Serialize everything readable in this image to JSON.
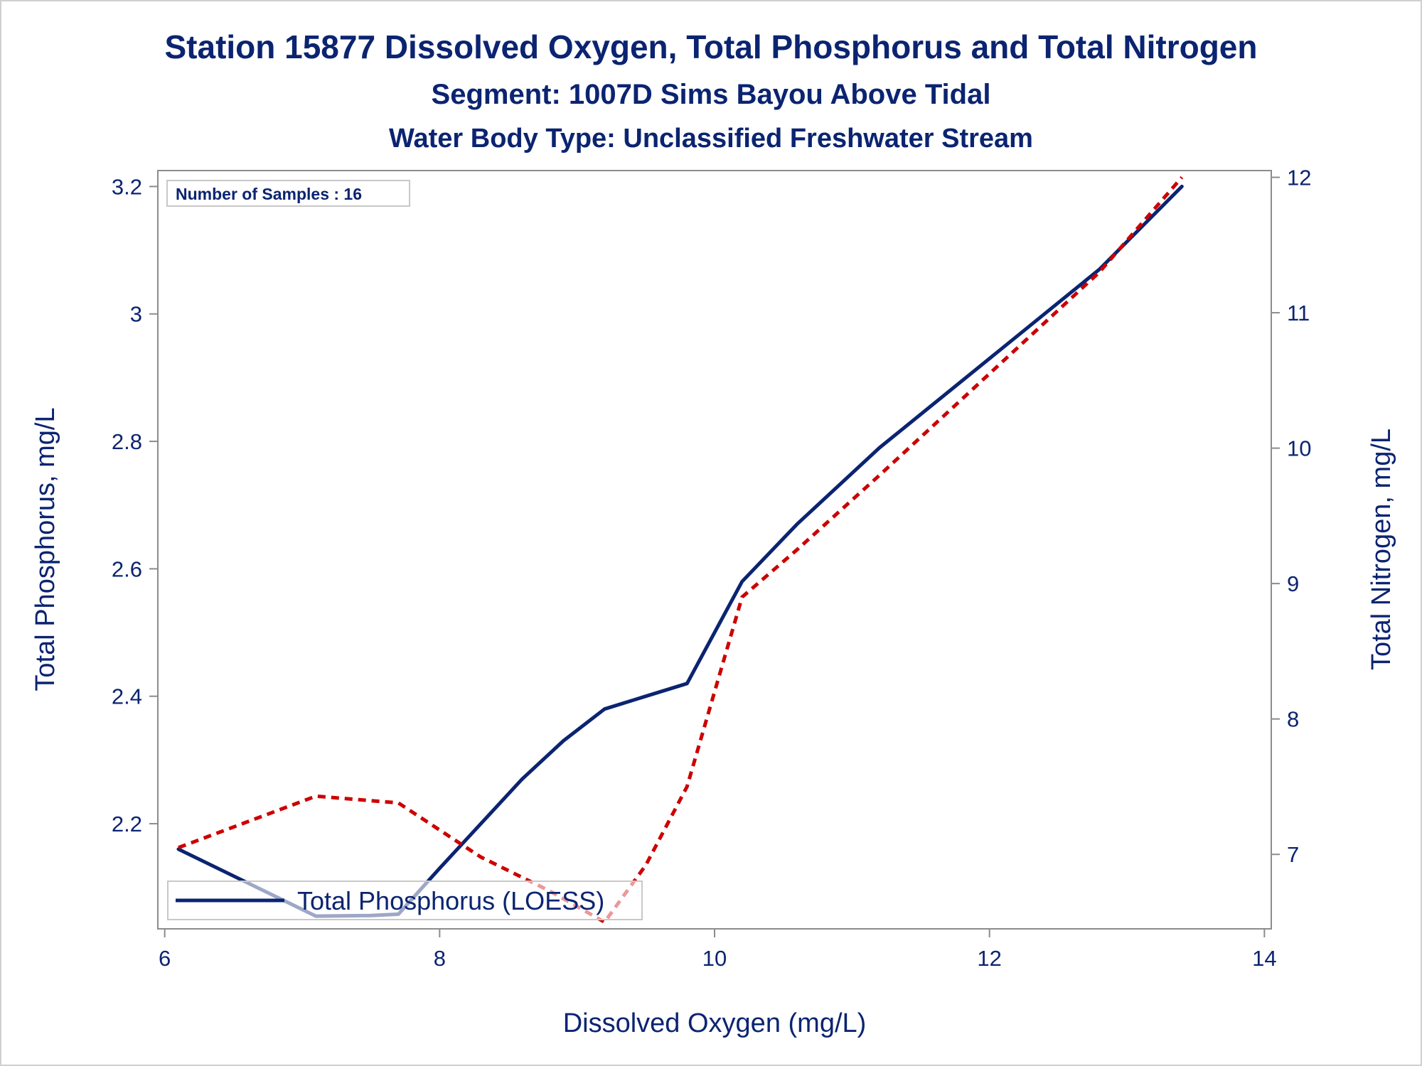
{
  "titles": {
    "line1": "Station 15877  Dissolved Oxygen, Total Phosphorus and Total Nitrogen",
    "line2": "Segment: 1007D  Sims Bayou Above Tidal",
    "line3": "Water Body Type: Unclassified Freshwater Stream"
  },
  "inset": {
    "text": "Number of Samples : 16"
  },
  "legend": {
    "label": "Total Phosphorus (LOESS)"
  },
  "colors": {
    "phosphorus": "#0b2471",
    "nitrogen": "#cc0000",
    "text": "#0b2471",
    "axis": "#8c8c8c"
  },
  "chart_data": {
    "type": "line",
    "xlabel": "Dissolved Oxygen (mg/L)",
    "ylabel": "Total Phosphorus, mg/L",
    "y2label": "Total Nitrogen, mg/L",
    "xlim": [
      5.95,
      14.05
    ],
    "ylim": [
      2.035,
      3.225
    ],
    "y2lim": [
      6.45,
      12.05
    ],
    "xticks": [
      "6",
      "8",
      "10",
      "12",
      "14"
    ],
    "yticks": [
      "2.2",
      "2.4",
      "2.6",
      "2.8",
      "3",
      "3.2"
    ],
    "y2ticks": [
      "7",
      "8",
      "9",
      "10",
      "11",
      "12"
    ],
    "grid": false,
    "legend_position": "bottom-left",
    "series": [
      {
        "name": "Total Phosphorus (LOESS)",
        "axis": "left",
        "style": "solid",
        "points": [
          [
            6.1,
            2.16
          ],
          [
            7.1,
            2.055
          ],
          [
            7.5,
            2.056
          ],
          [
            7.7,
            2.058
          ],
          [
            8.0,
            2.13
          ],
          [
            8.3,
            2.2
          ],
          [
            8.6,
            2.27
          ],
          [
            8.9,
            2.33
          ],
          [
            9.2,
            2.38
          ],
          [
            9.5,
            2.4
          ],
          [
            9.8,
            2.42
          ],
          [
            10.2,
            2.58
          ],
          [
            10.6,
            2.67
          ],
          [
            11.2,
            2.79
          ],
          [
            12.0,
            2.93
          ],
          [
            12.8,
            3.07
          ],
          [
            13.4,
            3.2
          ]
        ]
      },
      {
        "name": "Total Nitrogen",
        "axis": "right",
        "style": "dashed",
        "points": [
          [
            6.1,
            7.05
          ],
          [
            7.1,
            7.43
          ],
          [
            7.7,
            7.38
          ],
          [
            8.3,
            6.98
          ],
          [
            8.8,
            6.73
          ],
          [
            9.2,
            6.5
          ],
          [
            9.5,
            6.92
          ],
          [
            9.8,
            7.5
          ],
          [
            10.2,
            8.9
          ],
          [
            10.6,
            9.25
          ],
          [
            11.2,
            9.8
          ],
          [
            12.0,
            10.55
          ],
          [
            12.8,
            11.3
          ],
          [
            13.4,
            12.0
          ]
        ]
      }
    ]
  }
}
